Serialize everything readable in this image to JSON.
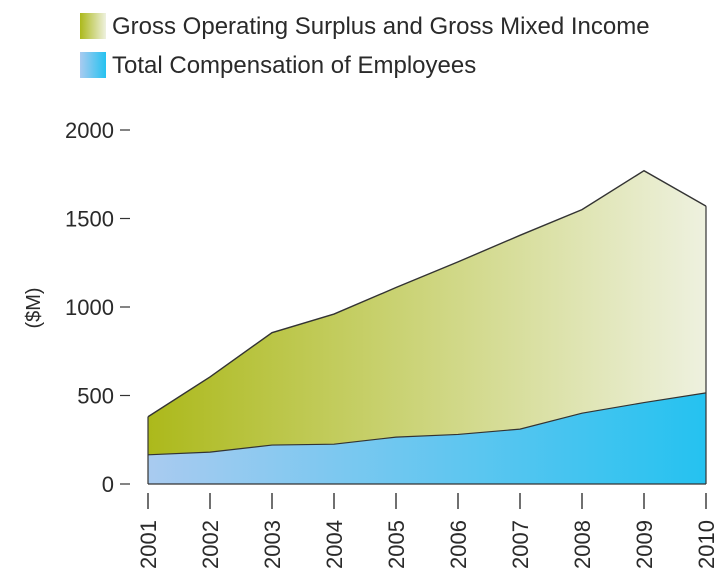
{
  "chart_data": {
    "type": "area",
    "title": "",
    "xlabel": "",
    "ylabel": "($M)",
    "categories": [
      "2001",
      "2002",
      "2003",
      "2004",
      "2005",
      "2006",
      "2007",
      "2008",
      "2009",
      "2010"
    ],
    "ylim": [
      0,
      2000
    ],
    "yticks": [
      0,
      500,
      1000,
      1500,
      2000
    ],
    "stacked": true,
    "grid": false,
    "legend_position": "top",
    "series": [
      {
        "name": "Total Compensation of Employees",
        "values": [
          165,
          180,
          220,
          225,
          265,
          280,
          310,
          400,
          460,
          515
        ],
        "color_start": "#a9cbf0",
        "color_end": "#25c2f0"
      },
      {
        "name": "Gross Operating Surplus and Gross Mixed Income",
        "values": [
          215,
          425,
          635,
          735,
          845,
          975,
          1095,
          1150,
          1310,
          1055
        ],
        "color_start": "#acb91b",
        "color_end": "#eef1df"
      }
    ],
    "legend": [
      {
        "label": "Gross Operating Surplus and Gross Mixed Income"
      },
      {
        "label": "Total Compensation of Employees"
      }
    ]
  }
}
